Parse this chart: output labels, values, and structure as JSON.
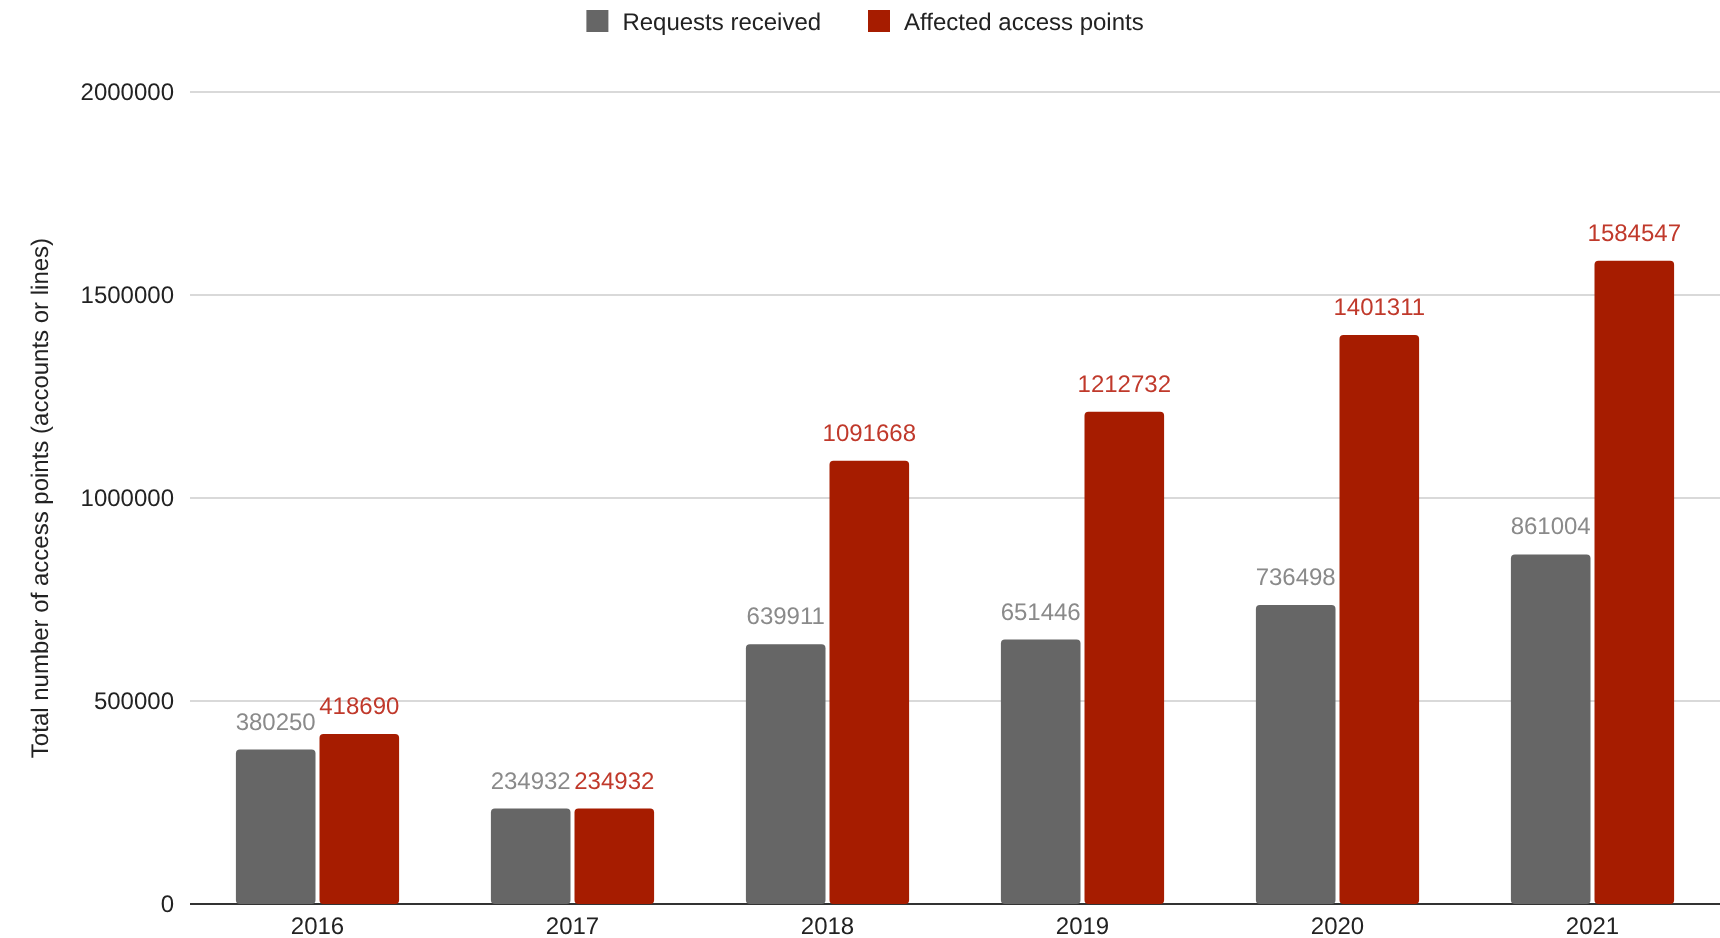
{
  "chart_data": {
    "type": "bar",
    "ylabel": "Total number of access points (accounts or lines)",
    "categories": [
      "2016",
      "2017",
      "2018",
      "2019",
      "2020",
      "2021"
    ],
    "series": [
      {
        "name": "Requests received",
        "color": "#666666",
        "values": [
          380250,
          234932,
          639911,
          651446,
          736498,
          861004
        ]
      },
      {
        "name": "Affected access points",
        "color": "#a61c00",
        "values": [
          418690,
          234932,
          1091668,
          1212732,
          1401311,
          1584547
        ]
      }
    ],
    "ylim": [
      0,
      2000000
    ],
    "yticks": [
      0,
      500000,
      1000000,
      1500000,
      2000000
    ],
    "grid": "y",
    "legend": "top",
    "data_labels": true
  }
}
